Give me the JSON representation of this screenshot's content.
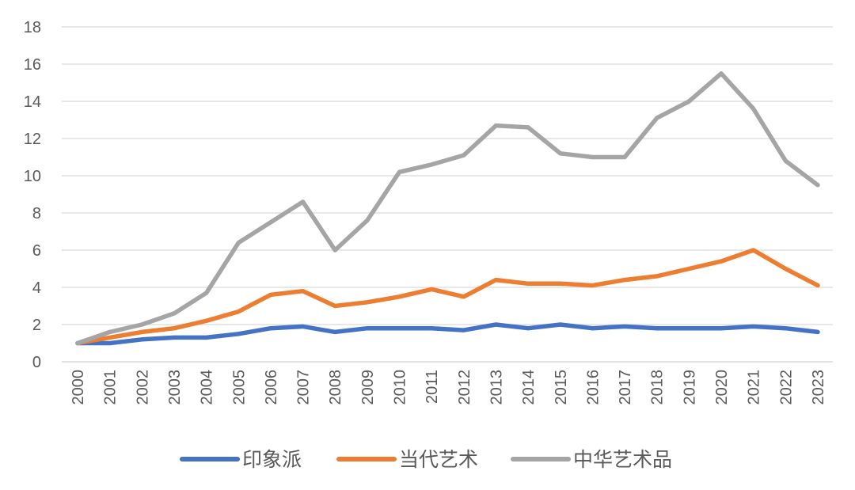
{
  "chart_data": {
    "type": "line",
    "title": "",
    "xlabel": "",
    "ylabel": "",
    "ylim": [
      0,
      18
    ],
    "yticks": [
      0,
      2,
      4,
      6,
      8,
      10,
      12,
      14,
      16,
      18
    ],
    "grid": true,
    "legend_position": "bottom",
    "x": [
      "2000",
      "2001",
      "2002",
      "2003",
      "2004",
      "2005",
      "2006",
      "2007",
      "2008",
      "2009",
      "2010",
      "2011",
      "2012",
      "2013",
      "2014",
      "2015",
      "2016",
      "2017",
      "2018",
      "2019",
      "2020",
      "2021",
      "2022",
      "2023"
    ],
    "series": [
      {
        "name": "印象派",
        "color": "#4472C4",
        "values": [
          1.0,
          1.0,
          1.2,
          1.3,
          1.3,
          1.5,
          1.8,
          1.9,
          1.6,
          1.8,
          1.8,
          1.8,
          1.7,
          2.0,
          1.8,
          2.0,
          1.8,
          1.9,
          1.8,
          1.8,
          1.8,
          1.9,
          1.8,
          1.6
        ]
      },
      {
        "name": "当代艺术",
        "color": "#ED7D31",
        "values": [
          1.0,
          1.3,
          1.6,
          1.8,
          2.2,
          2.7,
          3.6,
          3.8,
          3.0,
          3.2,
          3.5,
          3.9,
          3.5,
          4.4,
          4.2,
          4.2,
          4.1,
          4.4,
          4.6,
          5.0,
          5.4,
          6.0,
          5.0,
          4.1
        ]
      },
      {
        "name": "中华艺术品",
        "color": "#A5A5A5",
        "values": [
          1.0,
          1.6,
          2.0,
          2.6,
          3.7,
          6.4,
          7.5,
          8.6,
          6.0,
          7.6,
          10.2,
          10.6,
          11.1,
          12.7,
          12.6,
          11.2,
          11.0,
          11.0,
          13.1,
          14.0,
          15.5,
          13.6,
          10.8,
          9.5
        ]
      }
    ]
  }
}
